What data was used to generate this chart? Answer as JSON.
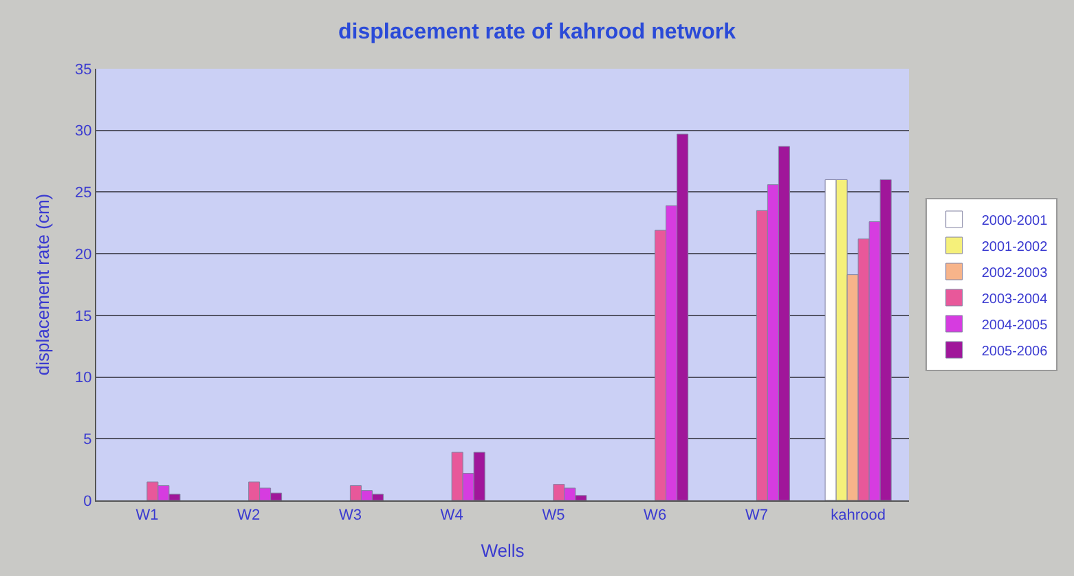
{
  "chart_data": {
    "type": "bar",
    "title": "displacement rate of kahrood network",
    "xlabel": "Wells",
    "ylabel": "displacement rate (cm)",
    "categories": [
      "W1",
      "W2",
      "W3",
      "W4",
      "W5",
      "W6",
      "W7",
      "kahrood"
    ],
    "series": [
      {
        "name": "2000-2001",
        "color": "#ffffff",
        "values": [
          null,
          null,
          null,
          null,
          null,
          null,
          null,
          26
        ]
      },
      {
        "name": "2001-2002",
        "color": "#f5f07a",
        "values": [
          null,
          null,
          null,
          null,
          null,
          null,
          null,
          26
        ]
      },
      {
        "name": "2002-2003",
        "color": "#f7b48a",
        "values": [
          null,
          null,
          null,
          null,
          null,
          null,
          null,
          18.3
        ]
      },
      {
        "name": "2003-2004",
        "color": "#e8589a",
        "values": [
          1.5,
          1.5,
          1.2,
          3.9,
          1.3,
          21.9,
          23.5,
          21.2
        ]
      },
      {
        "name": "2004-2005",
        "color": "#d63ce0",
        "values": [
          1.2,
          1.0,
          0.8,
          2.2,
          1.0,
          23.9,
          25.6,
          22.6
        ]
      },
      {
        "name": "2005-2006",
        "color": "#a0169a",
        "values": [
          0.5,
          0.6,
          0.5,
          3.9,
          0.4,
          29.7,
          28.7,
          26
        ]
      }
    ],
    "ylim": [
      0,
      35
    ],
    "yticks": [
      0,
      5,
      10,
      15,
      20,
      25,
      30,
      35
    ],
    "grid": "y",
    "legend": "right"
  }
}
